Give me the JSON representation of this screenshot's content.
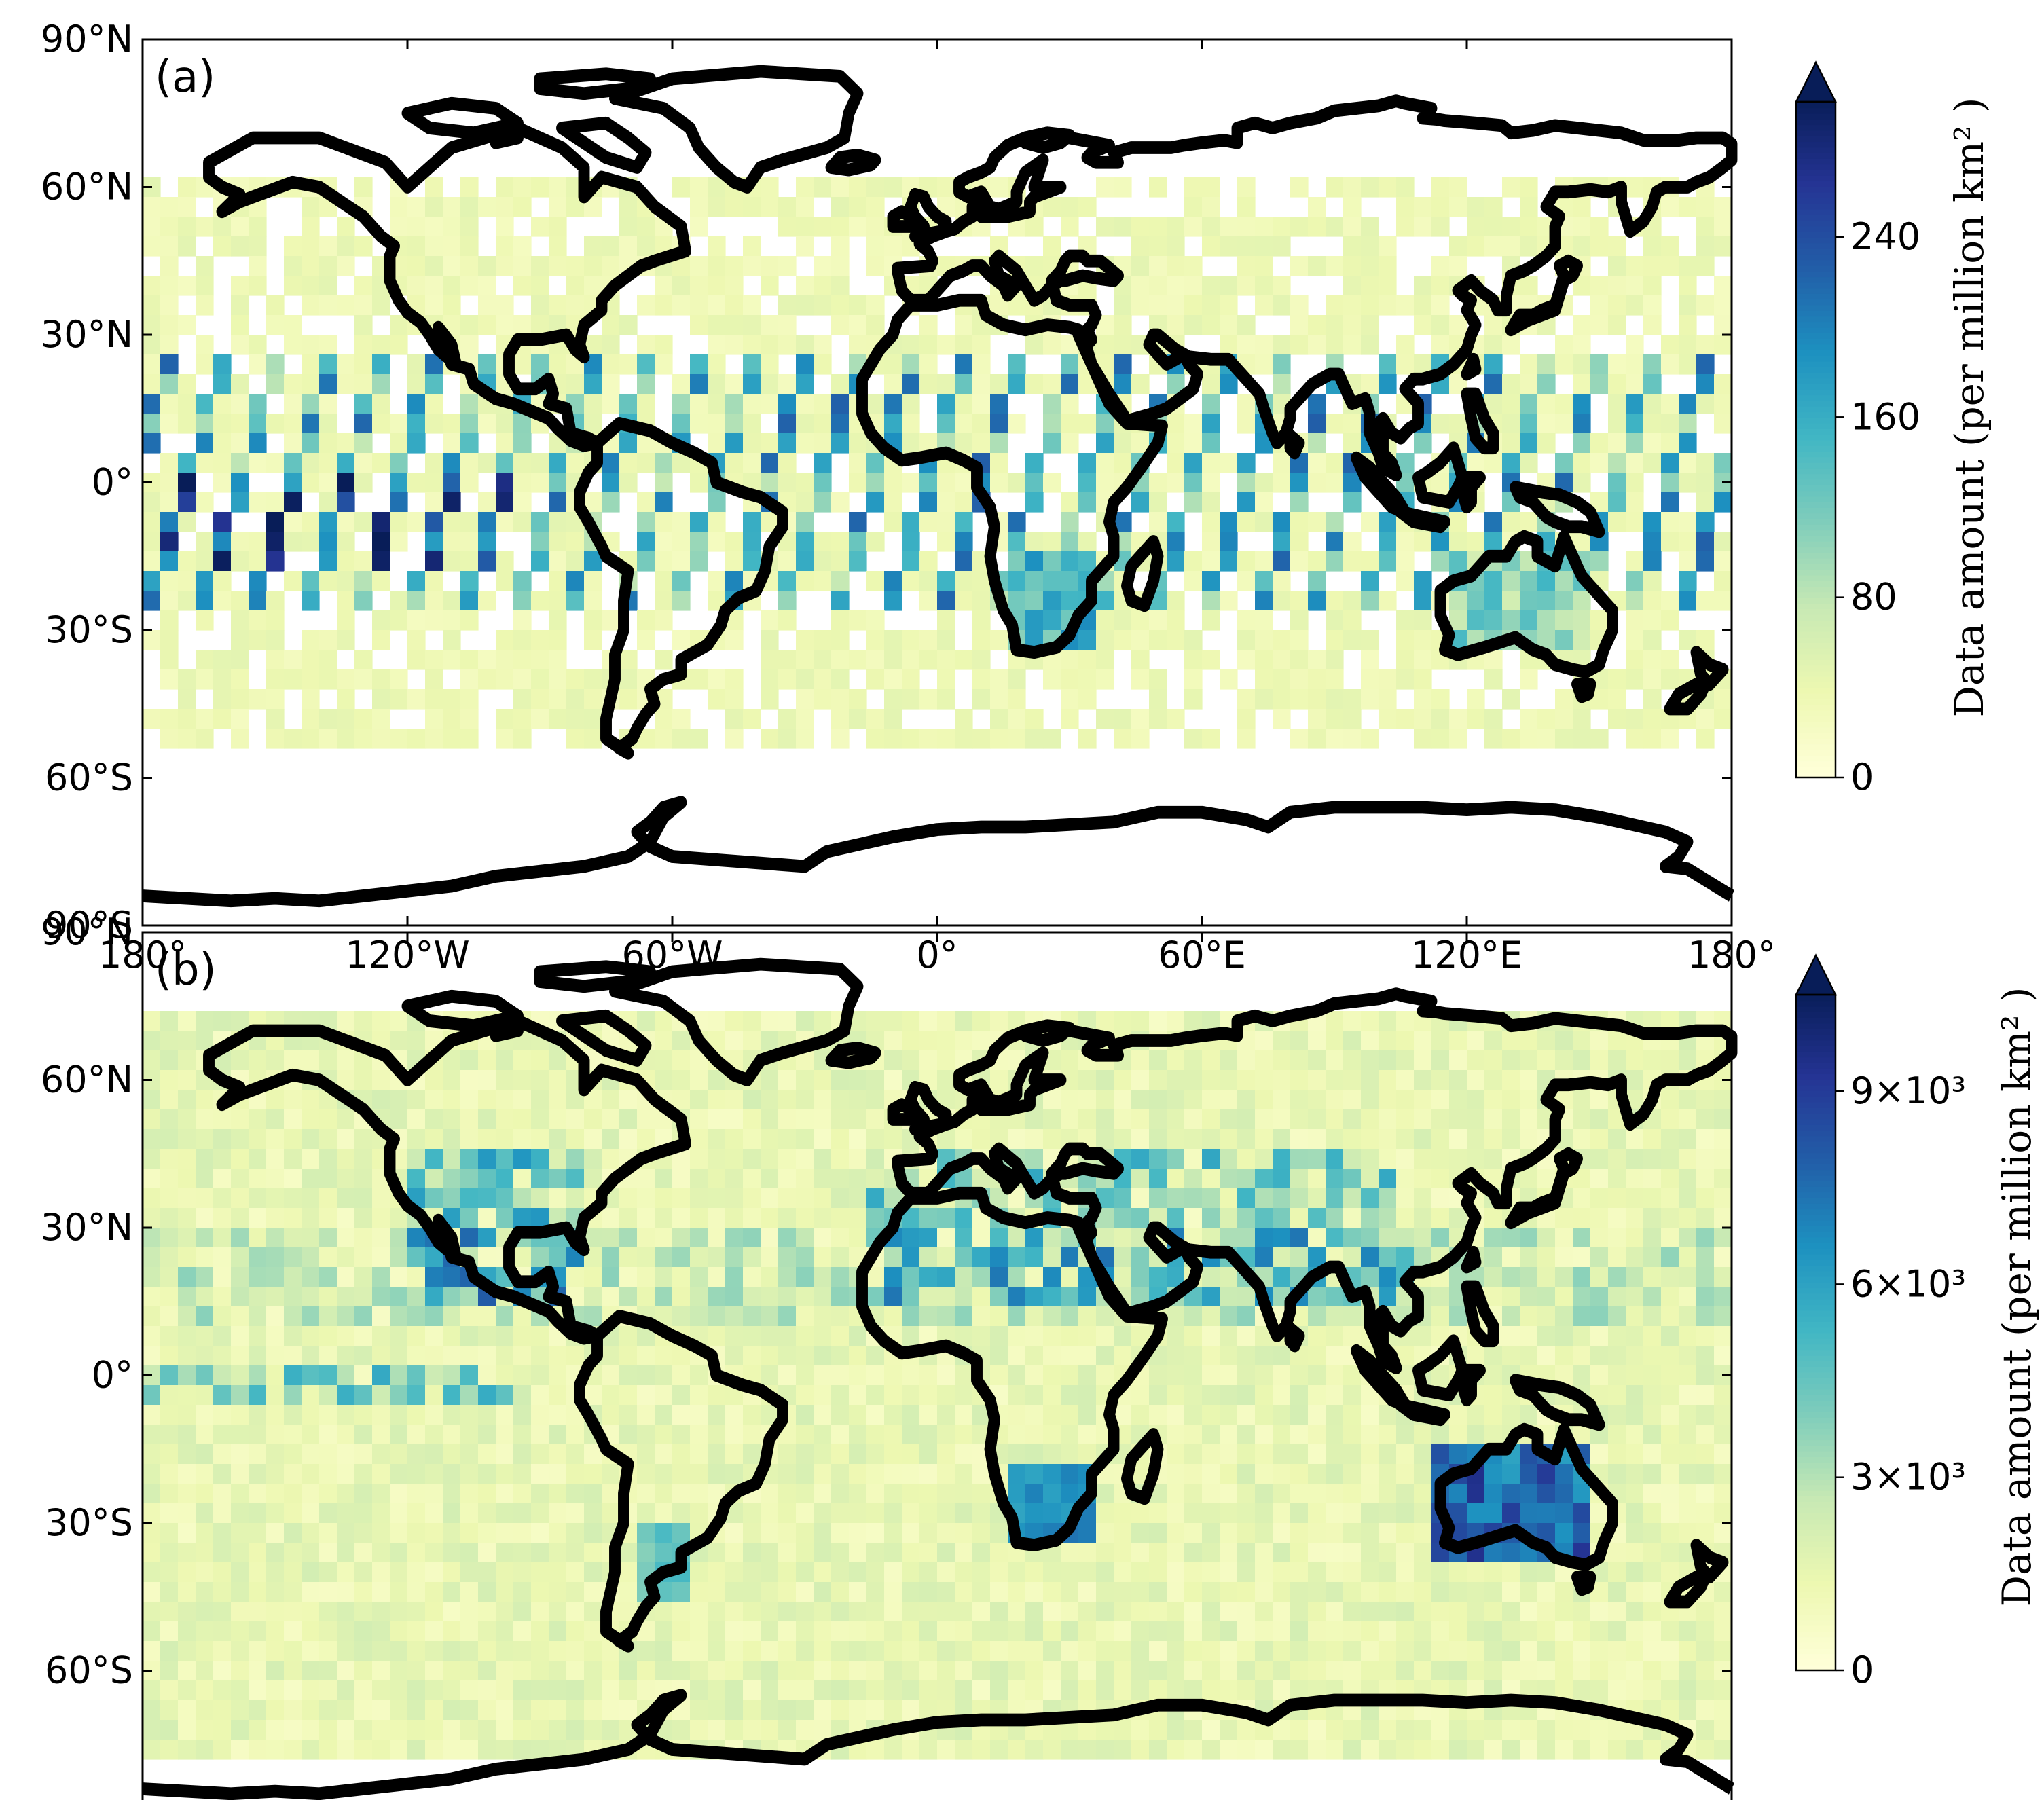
{
  "figure": {
    "panels": [
      {
        "label": "(a)",
        "colorbar": {
          "title": "Data amount (per million km² )",
          "min": 0,
          "max": 300,
          "ticks": [
            {
              "value": 0,
              "label": "0"
            },
            {
              "value": 80,
              "label": "80"
            },
            {
              "value": 160,
              "label": "160"
            },
            {
              "value": 240,
              "label": "240"
            }
          ],
          "extend": "max"
        }
      },
      {
        "label": "(b)",
        "colorbar": {
          "title": "Data amount (per million km² )",
          "min": 0,
          "max": 10500,
          "ticks": [
            {
              "value": 0,
              "label": "0"
            },
            {
              "value": 3000,
              "label": "3×10³"
            },
            {
              "value": 6000,
              "label": "6×10³"
            },
            {
              "value": 9000,
              "label": "9×10³"
            }
          ],
          "extend": "max"
        }
      }
    ],
    "lat_ticks": [
      {
        "value": 90,
        "label": "90°N"
      },
      {
        "value": 60,
        "label": "60°N"
      },
      {
        "value": 30,
        "label": "30°N"
      },
      {
        "value": 0,
        "label": "0°"
      },
      {
        "value": -30,
        "label": "30°S"
      },
      {
        "value": -60,
        "label": "60°S"
      },
      {
        "value": -90,
        "label": "90°S"
      }
    ],
    "lon_ticks": [
      {
        "value": -180,
        "label": "180°"
      },
      {
        "value": -120,
        "label": "120°W"
      },
      {
        "value": -60,
        "label": "60°W"
      },
      {
        "value": 0,
        "label": "0°"
      },
      {
        "value": 60,
        "label": "60°E"
      },
      {
        "value": 120,
        "label": "120°E"
      },
      {
        "value": 180,
        "label": "180°"
      }
    ],
    "colormap": [
      "#ffffd9",
      "#edf8b1",
      "#c7e9b4",
      "#7fcdbb",
      "#41b6c4",
      "#1d91c0",
      "#225ea8",
      "#253494",
      "#081d58"
    ]
  }
}
